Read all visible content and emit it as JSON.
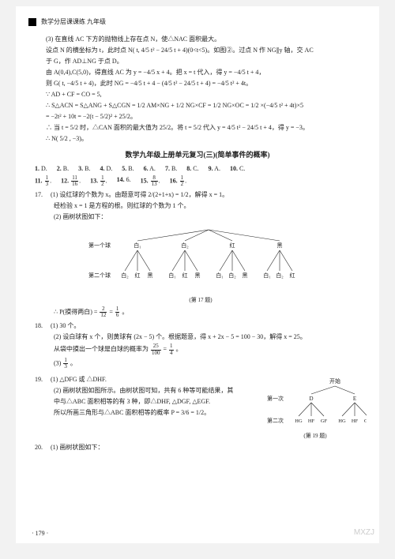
{
  "header": {
    "title": "数学分层课课练  九年级"
  },
  "colors": {
    "text": "#222222",
    "page_bg": "#ffffff",
    "outer_bg": "#f2f2f2",
    "watermark": "#cccccc"
  },
  "typography": {
    "body_size_pt": 8,
    "title_size_pt": 9,
    "caption_size_pt": 7
  },
  "problem3": {
    "label": "(3)",
    "lines": [
      "在直线 AC 下方的抛物线上存在点 N，使△NAC 面积最大。",
      "设点 N 的横坐标为 t，此时点 N( t, 4/5 t² − 24/5 t + 4)(0<t<5)。如图②。过点 N 作 NG∥y 轴，交 AC",
      "于 G，作 AD⊥NG 于点 D。",
      "由 A(0,4),C(5,0)，得直线 AC 为 y = −4/5 x + 4。把 x = t 代入，得 y = −4/5 t + 4，",
      "则 G( t, −4/5 t + 4)，此时 NG = −4/5 t + 4 − (4/5 t² − 24/5 t + 4) = −4/5 t² + 4t。",
      "∵  AD + CF = CO = 5,",
      "∴  S△ACN = S△ANG + S△CGN = 1/2 AM×NG + 1/2 NG×CF = 1/2 NG×OC = 1/2 ×(−4/5 t² + 4t)×5",
      "          = −2t² + 10t = −2(t − 5/2)² + 25/2。",
      "∴  当 t = 5/2 时，△CAN 面积的最大值为 25/2。将 t = 5/2 代入 y = 4/5 t² − 24/5 t + 4，得 y = −3。",
      "∴  N( 5/2 , −3)。"
    ]
  },
  "unit_title": "数学九年级上册单元复习(三)(简单事件的概率)",
  "answers": {
    "row1": [
      {
        "n": "1",
        "v": "D."
      },
      {
        "n": "2",
        "v": "B."
      },
      {
        "n": "3",
        "v": "B."
      },
      {
        "n": "4",
        "v": "D."
      },
      {
        "n": "5",
        "v": "B."
      },
      {
        "n": "6",
        "v": "A."
      },
      {
        "n": "7",
        "v": "B."
      },
      {
        "n": "8",
        "v": "C."
      },
      {
        "n": "9",
        "v": "A."
      },
      {
        "n": "10",
        "v": "C."
      }
    ],
    "row2": [
      {
        "n": "11",
        "frac": {
          "num": "1",
          "den": "3"
        }
      },
      {
        "n": "12",
        "frac": {
          "num": "11",
          "den": "16"
        }
      },
      {
        "n": "13",
        "frac": {
          "num": "1",
          "den": "2"
        }
      },
      {
        "n": "14",
        "v": "6."
      },
      {
        "n": "15",
        "frac": {
          "num": "8",
          "den": "13"
        }
      },
      {
        "n": "16",
        "frac": {
          "num": "1",
          "den": "2"
        }
      }
    ]
  },
  "q17": {
    "num": "17.",
    "p1_label": "(1)",
    "p1_lines": [
      "设红球的个数为 x。由题意可得 2/(2+1+x) = 1/2，解得 x = 1。",
      "经检验 x = 1 是方程的根。则红球的个数为 1 个。"
    ],
    "p2_label": "(2)",
    "p2_line": "画树状图如下：",
    "tree": {
      "type": "tree",
      "level1_label": "第一个球",
      "level2_label": "第二个球",
      "caption": "(第 17 题)",
      "roots": [
        "白₁",
        "白₂",
        "红",
        "黑"
      ],
      "children": [
        [
          "白₂",
          "红",
          "黑"
        ],
        [
          "白₁",
          "红",
          "黑"
        ],
        [
          "白₁",
          "白₂",
          "黑"
        ],
        [
          "白₁",
          "白₂",
          "红"
        ]
      ],
      "stroke": "#222222",
      "font_size": 7
    },
    "concl_prefix": "∴  P(摸得两白) = ",
    "concl_frac1": {
      "num": "2",
      "den": "12"
    },
    "concl_eq": " = ",
    "concl_frac2": {
      "num": "1",
      "den": "6"
    },
    "concl_suffix": "。"
  },
  "q18": {
    "num": "18.",
    "p1": "(1) 30 个。",
    "p2_line1": "(2) 设白球有 x 个，则黄球有 (2x − 5) 个。根据题意，得 x + 2x − 5 = 100 − 30，解得 x = 25。",
    "p2_line2_prefix": "从袋中摸出一个球是白球的概率为 ",
    "p2_frac1": {
      "num": "25",
      "den": "100"
    },
    "p2_eq": " = ",
    "p2_frac2": {
      "num": "1",
      "den": "4"
    },
    "p2_suffix": "。",
    "p3_label": "(3) ",
    "p3_frac": {
      "num": "1",
      "den": "3"
    },
    "p3_suffix": "。"
  },
  "q19": {
    "num": "19.",
    "p1": "(1) △DFG 或 △DHF.",
    "p2_lines": [
      "(2) 画树状图如图所示。由树状图可知，共有 6 种等可能结果，其",
      "中与△ABC 面积相等的有 3 种，即△DHF, △DGF, △EGF.",
      "所以所画三角形与△ABC 面积相等的概率 P = 3/6 = 1/2。"
    ],
    "tree": {
      "type": "tree",
      "caption": "(第 19 题)",
      "top_label": "开始",
      "level1_label": "第一次",
      "level2_label": "第二次",
      "roots": [
        "D",
        "E"
      ],
      "children": [
        [
          "HG",
          "HF",
          "GF"
        ],
        [
          "HG",
          "HF",
          "GF"
        ]
      ],
      "stroke": "#222222",
      "font_size": 7
    }
  },
  "q20": {
    "num": "20.",
    "p1": "(1) 画树状图如下："
  },
  "page_number": "· 179 ·",
  "watermark": "MXZJ"
}
